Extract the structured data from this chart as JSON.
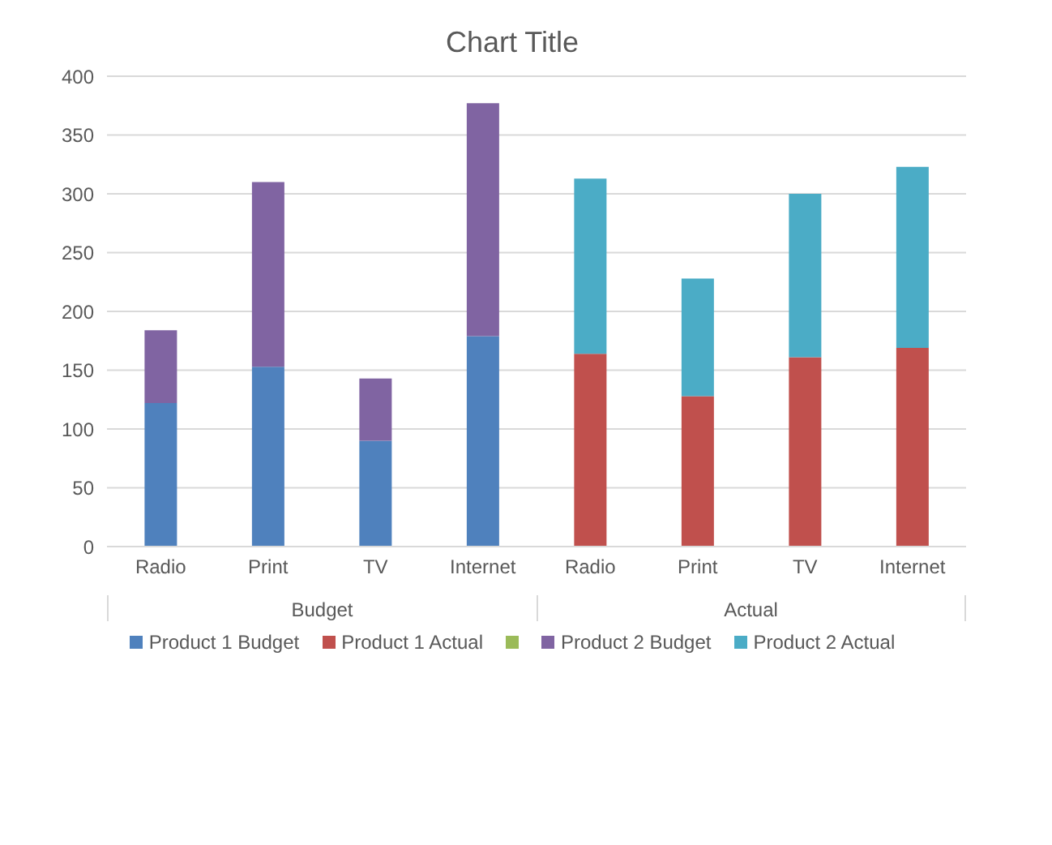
{
  "chart_data": {
    "type": "bar",
    "title": "Chart Title",
    "stacked": true,
    "categories": [
      "Radio",
      "Print",
      "TV",
      "Internet",
      "Radio",
      "Print",
      "TV",
      "Internet"
    ],
    "series": [
      {
        "name": "Product 1 Budget",
        "color": "#4f81bd",
        "values": [
          122,
          153,
          90,
          179,
          null,
          null,
          null,
          null
        ]
      },
      {
        "name": "Product 1 Actual",
        "color": "#c0504d",
        "values": [
          null,
          null,
          null,
          null,
          164,
          128,
          161,
          169
        ]
      },
      {
        "color": "#9bbb59",
        "values": [
          null,
          null,
          null,
          null,
          null,
          null,
          null,
          null
        ]
      },
      {
        "name": "Product 2 Budget",
        "color": "#8064a2",
        "values": [
          62,
          157,
          53,
          198,
          null,
          null,
          null,
          null
        ]
      },
      {
        "name": "Product 2 Actual",
        "color": "#4bacc6",
        "values": [
          null,
          null,
          null,
          null,
          149,
          100,
          139,
          154
        ]
      }
    ],
    "annotations": [
      "Budget",
      "Actual"
    ],
    "ylim": [
      0,
      400
    ],
    "yticks": [
      0,
      50,
      100,
      150,
      200,
      250,
      300,
      350,
      400
    ],
    "grid": "y",
    "legend": "bottom"
  }
}
